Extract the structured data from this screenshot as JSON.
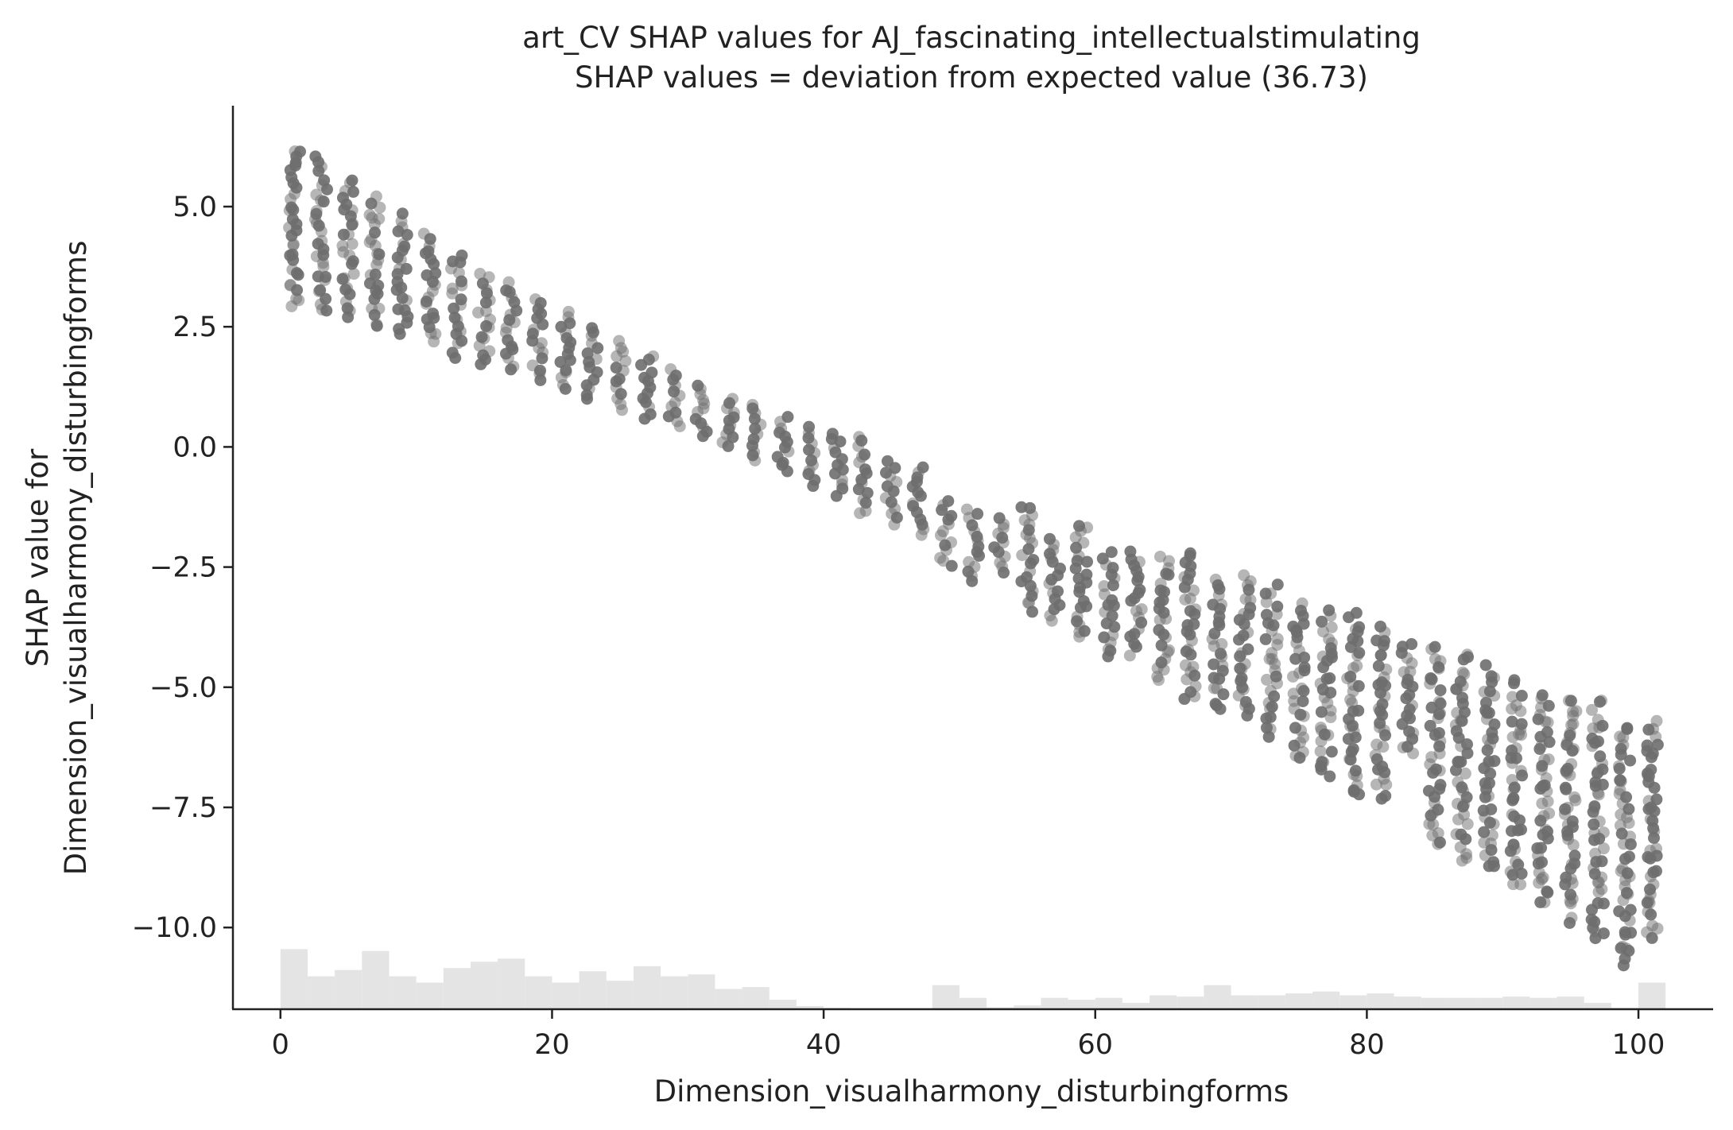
{
  "chart_data": {
    "type": "scatter",
    "title": "art_CV SHAP values for AJ_fascinating_intellectualstimulating",
    "subtitle": "SHAP values = deviation from expected value (36.73)",
    "xlabel": "Dimension_visualharmony_disturbingforms",
    "ylabel_line1": "SHAP value for",
    "ylabel_line2": "Dimension_visualharmony_disturbingforms",
    "xlim": [
      -3.5,
      105.5
    ],
    "ylim": [
      -11.7,
      7.1
    ],
    "x_ticks": [
      0,
      20,
      40,
      60,
      80,
      100
    ],
    "x_tick_labels": [
      "0",
      "20",
      "40",
      "60",
      "80",
      "100"
    ],
    "y_ticks": [
      5.0,
      2.5,
      0.0,
      -2.5,
      -5.0,
      -7.5,
      -10.0
    ],
    "y_tick_labels": [
      "5.0",
      "2.5",
      "0.0",
      "−2.5",
      "−5.0",
      "−7.5",
      "−10.0"
    ],
    "grid": false,
    "point_color": "#6e6e6e",
    "histogram_color": "#e4e4e4",
    "spine_color": "#222222",
    "trend": {
      "slope": -0.105,
      "intercept": 3.65
    },
    "bands": [
      {
        "x": 1,
        "ymin": 2.9,
        "ymax": 6.2
      },
      {
        "x": 3,
        "ymin": 2.8,
        "ymax": 6.0
      },
      {
        "x": 5,
        "ymin": 2.7,
        "ymax": 5.6
      },
      {
        "x": 7,
        "ymin": 2.5,
        "ymax": 5.2
      },
      {
        "x": 9,
        "ymin": 2.4,
        "ymax": 4.8
      },
      {
        "x": 11,
        "ymin": 2.2,
        "ymax": 4.4
      },
      {
        "x": 13,
        "ymin": 1.9,
        "ymax": 4.0
      },
      {
        "x": 15,
        "ymin": 1.7,
        "ymax": 3.6
      },
      {
        "x": 17,
        "ymin": 1.6,
        "ymax": 3.4
      },
      {
        "x": 19,
        "ymin": 1.4,
        "ymax": 3.1
      },
      {
        "x": 21,
        "ymin": 1.2,
        "ymax": 2.8
      },
      {
        "x": 23,
        "ymin": 1.0,
        "ymax": 2.5
      },
      {
        "x": 25,
        "ymin": 0.8,
        "ymax": 2.2
      },
      {
        "x": 27,
        "ymin": 0.6,
        "ymax": 1.9
      },
      {
        "x": 29,
        "ymin": 0.4,
        "ymax": 1.6
      },
      {
        "x": 31,
        "ymin": 0.2,
        "ymax": 1.3
      },
      {
        "x": 33,
        "ymin": 0.0,
        "ymax": 1.0
      },
      {
        "x": 35,
        "ymin": -0.3,
        "ymax": 0.9
      },
      {
        "x": 37,
        "ymin": -0.5,
        "ymax": 0.6
      },
      {
        "x": 39,
        "ymin": -0.8,
        "ymax": 0.4
      },
      {
        "x": 41,
        "ymin": -1.0,
        "ymax": 0.3
      },
      {
        "x": 43,
        "ymin": -1.4,
        "ymax": 0.2
      },
      {
        "x": 45,
        "ymin": -1.6,
        "ymax": -0.3
      },
      {
        "x": 47,
        "ymin": -1.8,
        "ymax": -0.4
      },
      {
        "x": 49,
        "ymin": -2.5,
        "ymax": -1.1
      },
      {
        "x": 51,
        "ymin": -2.8,
        "ymax": -1.3
      },
      {
        "x": 53,
        "ymin": -2.6,
        "ymax": -1.5
      },
      {
        "x": 55,
        "ymin": -3.4,
        "ymax": -1.2
      },
      {
        "x": 57,
        "ymin": -3.6,
        "ymax": -1.9
      },
      {
        "x": 59,
        "ymin": -4.0,
        "ymax": -1.6
      },
      {
        "x": 61,
        "ymin": -4.4,
        "ymax": -2.2
      },
      {
        "x": 63,
        "ymin": -4.3,
        "ymax": -2.2
      },
      {
        "x": 65,
        "ymin": -4.9,
        "ymax": -2.3
      },
      {
        "x": 67,
        "ymin": -5.3,
        "ymax": -2.2
      },
      {
        "x": 69,
        "ymin": -5.5,
        "ymax": -2.8
      },
      {
        "x": 71,
        "ymin": -5.6,
        "ymax": -2.7
      },
      {
        "x": 73,
        "ymin": -6.0,
        "ymax": -2.9
      },
      {
        "x": 75,
        "ymin": -6.5,
        "ymax": -3.3
      },
      {
        "x": 77,
        "ymin": -6.9,
        "ymax": -3.4
      },
      {
        "x": 79,
        "ymin": -7.3,
        "ymax": -3.5
      },
      {
        "x": 81,
        "ymin": -7.3,
        "ymax": -3.8
      },
      {
        "x": 83,
        "ymin": -6.4,
        "ymax": -4.1
      },
      {
        "x": 85,
        "ymin": -8.3,
        "ymax": -4.2
      },
      {
        "x": 87,
        "ymin": -8.6,
        "ymax": -4.3
      },
      {
        "x": 89,
        "ymin": -8.8,
        "ymax": -4.6
      },
      {
        "x": 91,
        "ymin": -9.2,
        "ymax": -4.9
      },
      {
        "x": 93,
        "ymin": -9.5,
        "ymax": -5.1
      },
      {
        "x": 95,
        "ymin": -9.8,
        "ymax": -5.2
      },
      {
        "x": 97,
        "ymin": -10.3,
        "ymax": -5.3
      },
      {
        "x": 99,
        "ymin": -10.8,
        "ymax": -5.8
      },
      {
        "x": 101,
        "ymin": -10.2,
        "ymax": -5.7
      }
    ],
    "histogram": {
      "bin_width": 2,
      "starts": [
        0,
        2,
        4,
        6,
        8,
        10,
        12,
        14,
        16,
        18,
        20,
        22,
        24,
        26,
        28,
        30,
        32,
        34,
        36,
        38,
        40,
        42,
        44,
        46,
        48,
        50,
        52,
        54,
        56,
        58,
        60,
        62,
        64,
        66,
        68,
        70,
        72,
        74,
        76,
        78,
        80,
        82,
        84,
        86,
        88,
        90,
        92,
        94,
        96,
        98,
        100
      ],
      "heights": [
        0.95,
        0.52,
        0.62,
        0.92,
        0.52,
        0.42,
        0.65,
        0.75,
        0.8,
        0.52,
        0.42,
        0.6,
        0.45,
        0.68,
        0.52,
        0.55,
        0.32,
        0.35,
        0.15,
        0.05,
        0.02,
        0.0,
        0.0,
        0.0,
        0.38,
        0.18,
        0.03,
        0.06,
        0.18,
        0.15,
        0.18,
        0.1,
        0.22,
        0.2,
        0.38,
        0.22,
        0.22,
        0.25,
        0.28,
        0.22,
        0.25,
        0.2,
        0.18,
        0.18,
        0.18,
        0.2,
        0.18,
        0.2,
        0.1,
        0.02,
        0.42
      ],
      "max_fraction_of_plot": 0.07
    }
  }
}
